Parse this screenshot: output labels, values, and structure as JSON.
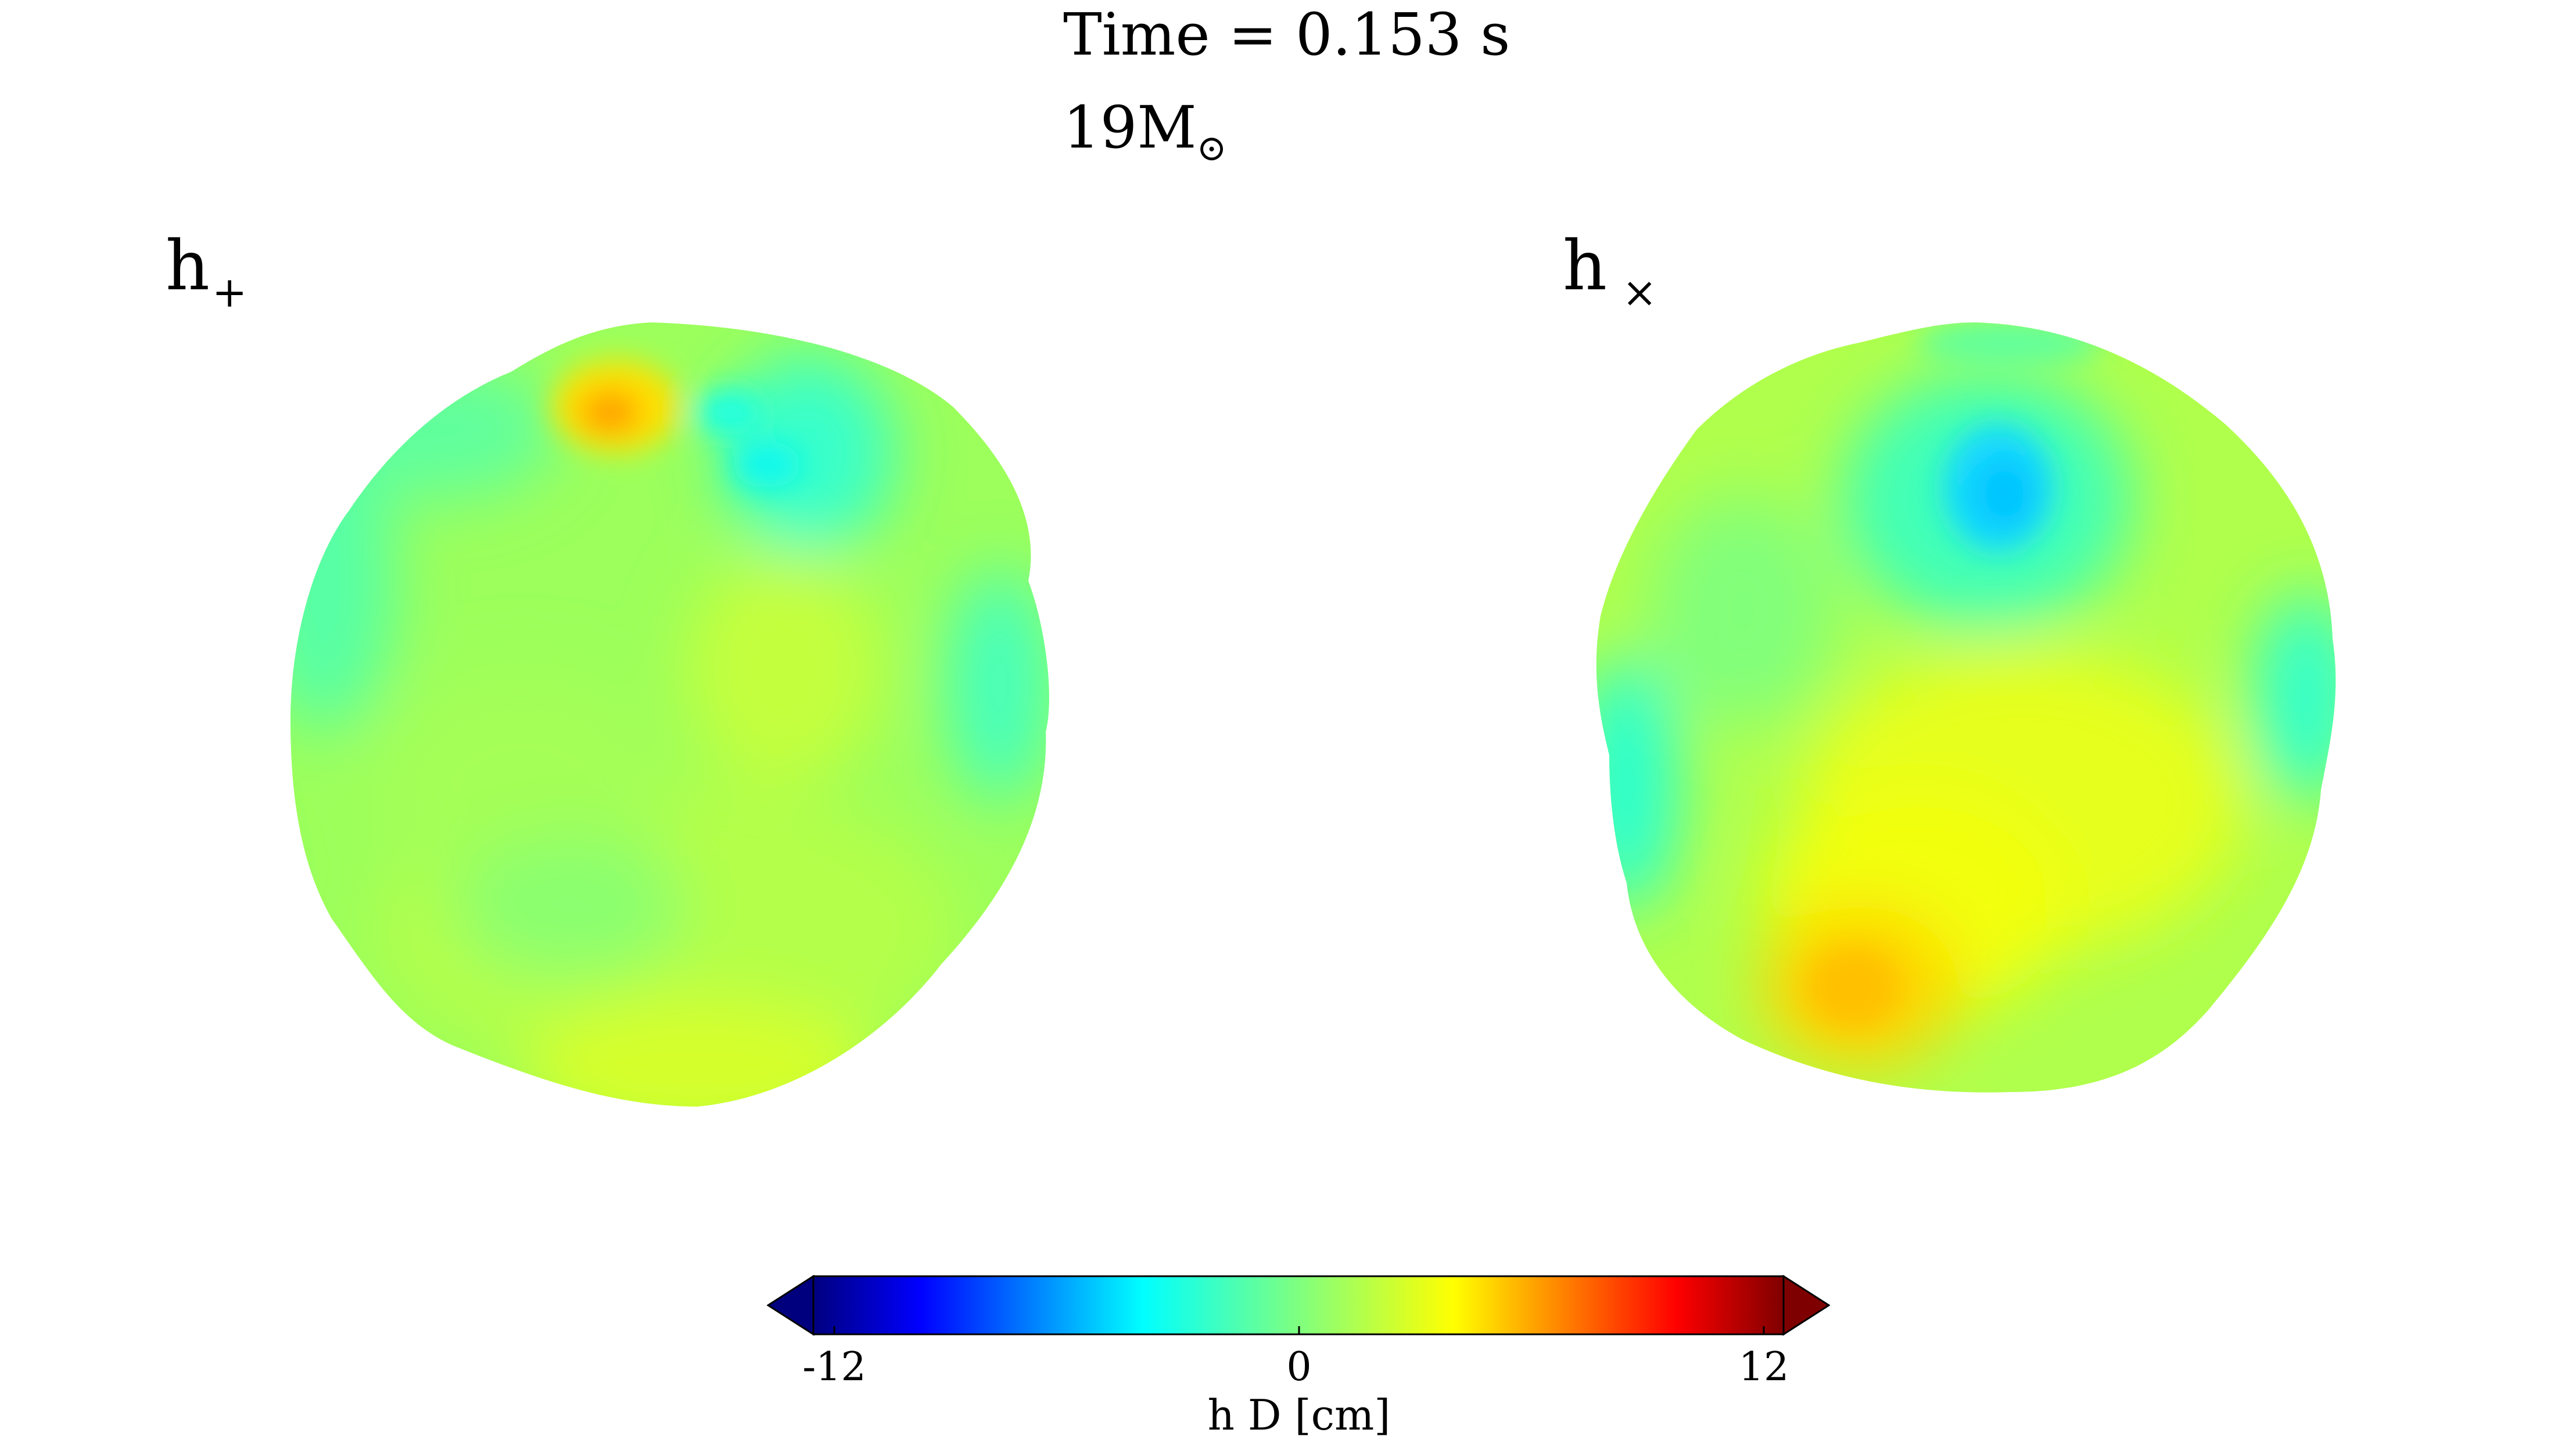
{
  "header": {
    "time_text": "Time = 0.153 s",
    "mass_value": "19M",
    "mass_symbol": "⊙"
  },
  "panels": [
    {
      "id": "h-plus",
      "label_main": "h",
      "label_sub": "+"
    },
    {
      "id": "h-cross",
      "label_main": "h",
      "label_sub": "×"
    }
  ],
  "colorbar": {
    "label": "h D [cm]",
    "min": -12,
    "max": 12,
    "ticks": [
      {
        "value": -12,
        "text": "-12"
      },
      {
        "value": 0,
        "text": "0"
      },
      {
        "value": 12,
        "text": "12"
      }
    ],
    "colormap": "jet",
    "extend": "both"
  },
  "colors": {
    "jet_darkblue": "#00007f",
    "jet_blue": "#0000ff",
    "jet_lightblue": "#007fff",
    "jet_cyan": "#00ffff",
    "jet_aquagreen": "#40ffb8",
    "jet_green": "#7fff7f",
    "jet_lime": "#b8ff40",
    "jet_yellow": "#ffff00",
    "jet_orange": "#ff7f00",
    "jet_red": "#ff0000",
    "jet_darkred": "#7f0000"
  }
}
